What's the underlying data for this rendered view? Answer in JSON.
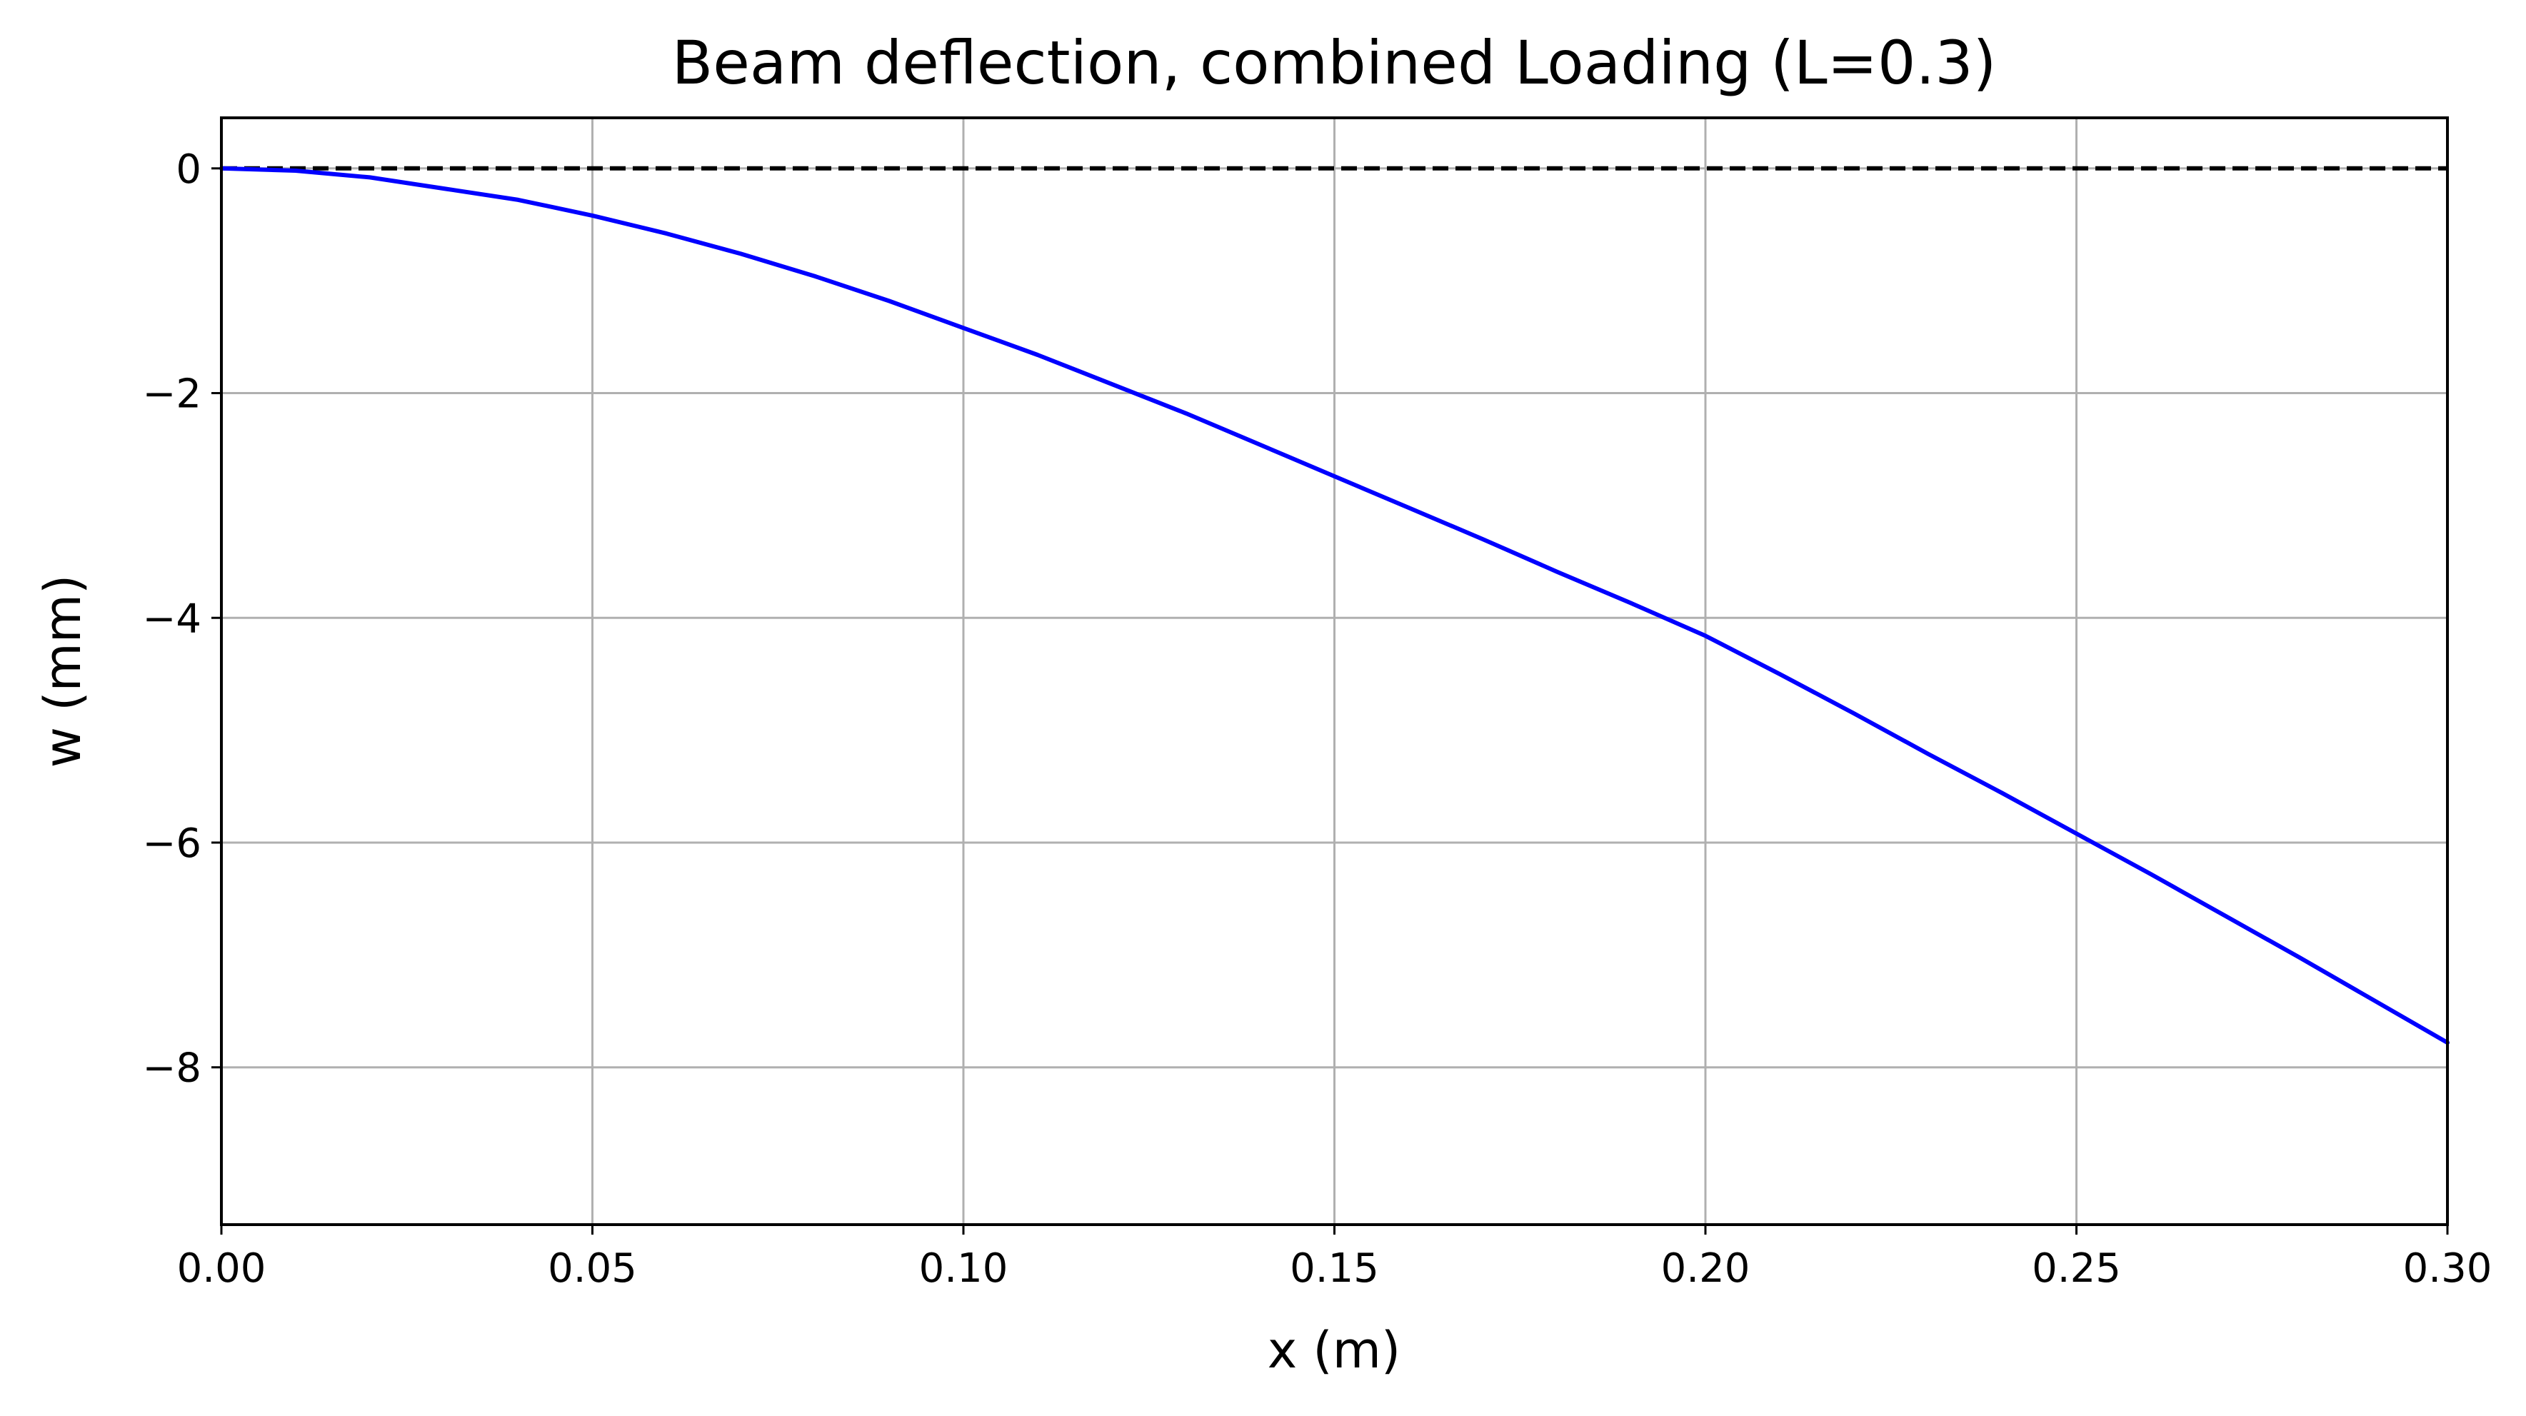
{
  "chart_data": {
    "type": "line",
    "title": "Beam deflection, combined Loading (L=0.3)",
    "xlabel": "x (m)",
    "ylabel": "w (mm)",
    "xlim": [
      0.0,
      0.3
    ],
    "ylim": [
      -9.4,
      0.45
    ],
    "x_ticks": [
      0.0,
      0.05,
      0.1,
      0.15,
      0.2,
      0.25,
      0.3
    ],
    "x_tick_labels": [
      "0.00",
      "0.05",
      "0.10",
      "0.15",
      "0.20",
      "0.25",
      "0.30"
    ],
    "y_ticks": [
      0,
      -2,
      -4,
      -6,
      -8
    ],
    "y_tick_labels": [
      "0",
      "−2",
      "−4",
      "−6",
      "−8"
    ],
    "grid": true,
    "legend": false,
    "reference_line": {
      "y": 0,
      "style": "dashed",
      "color": "#000000"
    },
    "series": [
      {
        "color": "#0000ff",
        "x": [
          0.0,
          0.01,
          0.02,
          0.03,
          0.04,
          0.05,
          0.06,
          0.07,
          0.08,
          0.09,
          0.1,
          0.11,
          0.12,
          0.13,
          0.14,
          0.15,
          0.16,
          0.17,
          0.18,
          0.19,
          0.2,
          0.21,
          0.22,
          0.23,
          0.24,
          0.25,
          0.26,
          0.27,
          0.28,
          0.29,
          0.3
        ],
        "y": [
          0.0,
          -0.02,
          -0.08,
          -0.18,
          -0.28,
          -0.42,
          -0.58,
          -0.76,
          -0.96,
          -1.18,
          -1.42,
          -1.66,
          -1.92,
          -2.18,
          -2.46,
          -2.74,
          -3.02,
          -3.3,
          -3.59,
          -3.87,
          -4.16,
          -4.5,
          -4.85,
          -5.21,
          -5.56,
          -5.92,
          -6.28,
          -6.65,
          -7.02,
          -7.4,
          -7.78
        ]
      }
    ]
  }
}
